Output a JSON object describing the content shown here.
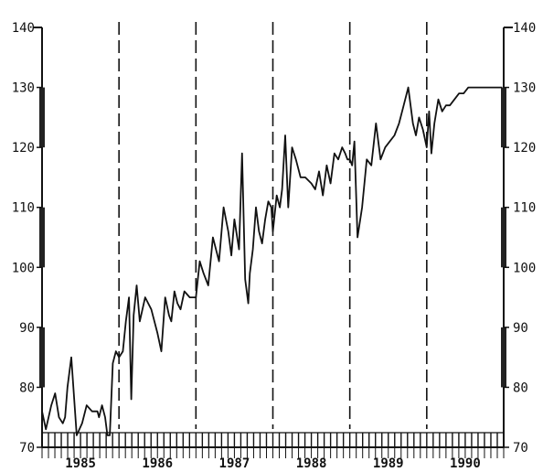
{
  "chart_data": {
    "type": "line",
    "title": "",
    "xlabel": "",
    "ylabel": "",
    "ylim": [
      70,
      140
    ],
    "y_ticks": [
      70,
      80,
      90,
      100,
      110,
      120,
      130,
      140
    ],
    "y_tick_labels_left": [
      "70",
      "80",
      "90",
      "100",
      "110",
      "120",
      "130",
      "140"
    ],
    "y_tick_labels_right": [
      "70",
      "80",
      "90",
      "100",
      "110",
      "120",
      "130",
      "140"
    ],
    "years": [
      "1985",
      "1986",
      "1987",
      "1988",
      "1989",
      "1990"
    ],
    "year_boundaries": [
      1986,
      1987,
      1988,
      1989,
      1990
    ],
    "xlim": [
      1985,
      1991
    ],
    "grid": false,
    "line_color": "#111111",
    "series": [
      {
        "x": [
          1985.0,
          1985.05,
          1985.12,
          1985.17,
          1985.22,
          1985.27,
          1985.3,
          1985.33,
          1985.38,
          1985.45,
          1985.52,
          1985.58,
          1985.65,
          1985.72,
          1985.74,
          1985.78,
          1985.82,
          1985.85,
          1985.88,
          1985.92,
          1985.96,
          1986.0,
          1986.05,
          1986.09,
          1986.13,
          1986.16,
          1986.19,
          1986.23,
          1986.27,
          1986.34,
          1986.42,
          1986.5,
          1986.55,
          1986.6,
          1986.65,
          1986.68,
          1986.72,
          1986.76,
          1986.8,
          1986.85,
          1986.92,
          1987.0,
          1987.05,
          1987.1,
          1987.16,
          1987.22,
          1987.3,
          1987.36,
          1987.42,
          1987.46,
          1987.5,
          1987.56,
          1987.6,
          1987.64,
          1987.68,
          1987.7,
          1987.74,
          1987.78,
          1987.82,
          1987.86,
          1987.9,
          1987.94,
          1987.98,
          1988.0,
          1988.05,
          1988.09,
          1988.12,
          1988.16,
          1988.2,
          1988.25,
          1988.3,
          1988.36,
          1988.42,
          1988.5,
          1988.55,
          1988.6,
          1988.65,
          1988.7,
          1988.75,
          1988.8,
          1988.85,
          1988.9,
          1988.94,
          1988.97,
          1989.0,
          1989.03,
          1989.06,
          1989.1,
          1989.16,
          1989.22,
          1989.28,
          1989.34,
          1989.4,
          1989.46,
          1989.52,
          1989.58,
          1989.64,
          1989.7,
          1989.76,
          1989.82,
          1989.86,
          1989.9,
          1989.95,
          1990.0,
          1990.03,
          1990.06,
          1990.1,
          1990.15,
          1990.2,
          1990.25,
          1990.3,
          1990.36,
          1990.42,
          1990.48,
          1990.54,
          1990.6,
          1990.64,
          1990.68,
          1990.72,
          1990.76,
          1990.8,
          1990.84,
          1990.88,
          1990.94,
          1990.98
        ],
        "y": [
          76,
          73,
          77,
          79,
          75,
          74,
          75,
          80,
          85,
          72,
          74,
          77,
          76,
          76,
          75,
          77,
          75,
          72,
          72,
          84,
          86,
          85,
          86,
          91,
          95,
          78,
          92,
          97,
          91,
          95,
          93,
          89,
          86,
          95,
          92,
          91,
          96,
          94,
          93,
          96,
          95,
          95,
          101,
          99,
          97,
          105,
          101,
          110,
          106,
          102,
          108,
          103,
          119,
          98,
          94,
          99,
          103,
          110,
          106,
          104,
          108,
          111,
          110,
          106,
          112,
          110,
          113,
          122,
          110,
          120,
          118,
          115,
          115,
          114,
          113,
          116,
          112,
          117,
          114,
          119,
          118,
          120,
          119,
          118,
          118,
          117,
          121,
          105,
          110,
          118,
          117,
          124,
          118,
          120,
          121,
          122,
          124,
          127,
          130,
          124,
          122,
          125,
          123,
          120,
          126,
          119,
          124,
          128,
          126,
          127,
          127,
          128,
          129,
          129,
          130,
          130,
          130,
          130,
          130,
          130,
          130,
          130,
          130,
          130,
          130
        ]
      }
    ]
  }
}
